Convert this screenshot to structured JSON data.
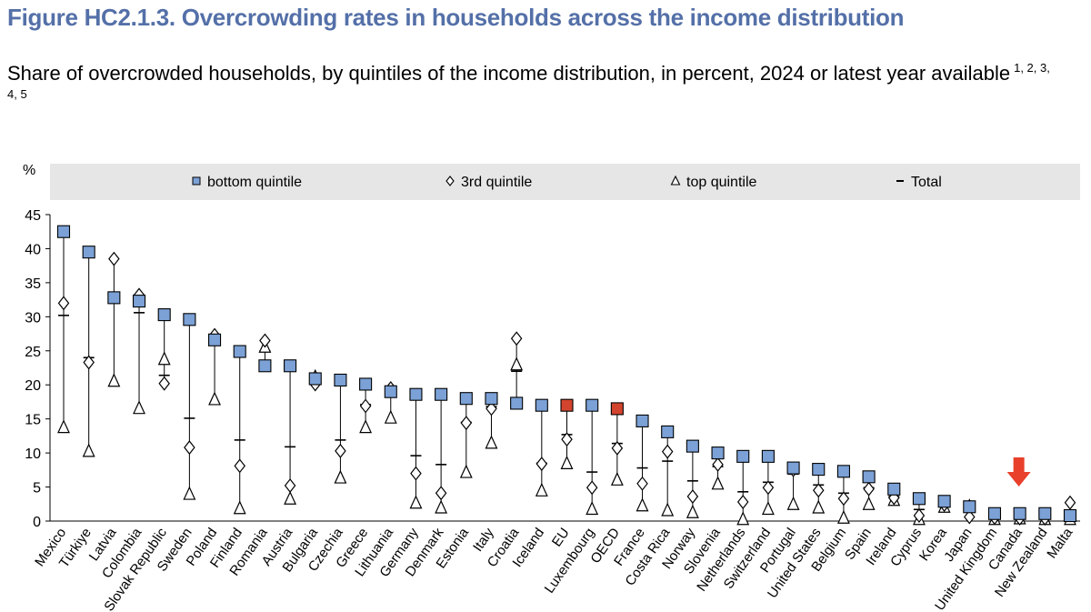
{
  "title": "Figure HC2.1.3. Overcrowding rates in households across the income distribution",
  "subtitle": "Share of overcrowded households, by quintiles of the income distribution, in percent, 2024 or latest year available",
  "footnote_refs": "1, 2, 3, 4, 5",
  "colors": {
    "title": "#5470a8",
    "square_fill": "#7ba1d6",
    "square_highlight": "#d3442f",
    "legend_bg": "#e6e6e6",
    "arrow": "#e8402b"
  },
  "chart_data": {
    "type": "scatter",
    "ylabel": "%",
    "ylim": [
      0,
      45
    ],
    "yticks": [
      0,
      5,
      10,
      15,
      20,
      25,
      30,
      35,
      40,
      45
    ],
    "grid": false,
    "legend_position": "top",
    "legend": [
      {
        "key": "bottom",
        "marker": "square",
        "label": "bottom quintile"
      },
      {
        "key": "third",
        "marker": "diamond",
        "label": "3rd quintile"
      },
      {
        "key": "top",
        "marker": "triangle",
        "label": "top quintile"
      },
      {
        "key": "total",
        "marker": "dash",
        "label": "Total"
      }
    ],
    "highlighted": [
      "EU",
      "OECD"
    ],
    "annotation": {
      "type": "arrow",
      "target": "Canada"
    },
    "categories": [
      "Mexico",
      "Türkiye",
      "Latvia",
      "Colombia",
      "Slovak Republic",
      "Sweden",
      "Poland",
      "Finland",
      "Romania",
      "Austria",
      "Bulgaria",
      "Czechia",
      "Greece",
      "Lithuania",
      "Germany",
      "Denmark",
      "Estonia",
      "Italy",
      "Croatia",
      "Iceland",
      "EU",
      "Luxembourg",
      "OECD",
      "France",
      "Costa Rica",
      "Norway",
      "Slovenia",
      "Netherlands",
      "Switzerland",
      "Portugal",
      "United States",
      "Belgium",
      "Spain",
      "Ireland",
      "Cyprus",
      "Korea",
      "Japan",
      "United Kingdom",
      "Canada",
      "New Zealand",
      "Malta"
    ],
    "series": [
      {
        "name": "bottom quintile",
        "values": [
          42.5,
          39.5,
          32.8,
          32.3,
          30.3,
          29.6,
          26.6,
          24.9,
          22.8,
          22.8,
          20.9,
          20.7,
          20.1,
          19.0,
          18.6,
          18.6,
          18.0,
          18.0,
          17.3,
          17.0,
          17.0,
          17.0,
          16.5,
          14.7,
          13.1,
          11.0,
          10.0,
          9.5,
          9.5,
          7.8,
          7.6,
          7.3,
          6.5,
          4.7,
          3.3,
          2.9,
          2.1,
          1.1,
          1.1,
          1.1,
          0.8
        ]
      },
      {
        "name": "3rd quintile",
        "values": [
          32.0,
          23.3,
          38.5,
          33.2,
          20.2,
          10.8,
          27.3,
          8.1,
          26.5,
          5.2,
          20.1,
          10.3,
          16.9,
          19.5,
          7.0,
          4.1,
          14.4,
          16.5,
          26.8,
          8.4,
          12.0,
          4.9,
          10.7,
          5.5,
          10.2,
          3.6,
          8.3,
          2.8,
          4.9,
          7.5,
          4.5,
          3.3,
          4.7,
          3.4,
          0.8,
          2.4,
          0.6,
          0.5,
          0.4,
          0.4,
          2.7
        ]
      },
      {
        "name": "top quintile",
        "values": [
          13.8,
          10.3,
          20.6,
          16.6,
          23.8,
          4.0,
          17.9,
          1.9,
          25.6,
          3.3,
          21.2,
          6.4,
          13.8,
          15.2,
          2.7,
          2.0,
          7.2,
          11.5,
          23.0,
          4.5,
          8.5,
          1.8,
          6.1,
          2.3,
          1.6,
          1.3,
          5.5,
          0.3,
          1.8,
          2.5,
          2.0,
          0.5,
          2.5,
          3.1,
          0.3,
          2.1,
          2.2,
          0.3,
          0.4,
          0.3,
          0.3
        ]
      },
      {
        "name": "Total",
        "values": [
          30.2,
          24.0,
          32.0,
          30.6,
          21.4,
          15.1,
          26.5,
          11.9,
          25.0,
          10.9,
          20.7,
          11.9,
          17.1,
          19.2,
          9.6,
          8.3,
          14.5,
          16.8,
          22.0,
          8.5,
          12.7,
          7.2,
          11.4,
          7.8,
          8.8,
          5.9,
          8.0,
          4.3,
          5.7,
          6.9,
          5.3,
          4.1,
          4.9,
          3.6,
          1.7,
          2.7,
          1.6,
          0.6,
          0.6,
          0.6,
          1.2
        ]
      }
    ]
  }
}
